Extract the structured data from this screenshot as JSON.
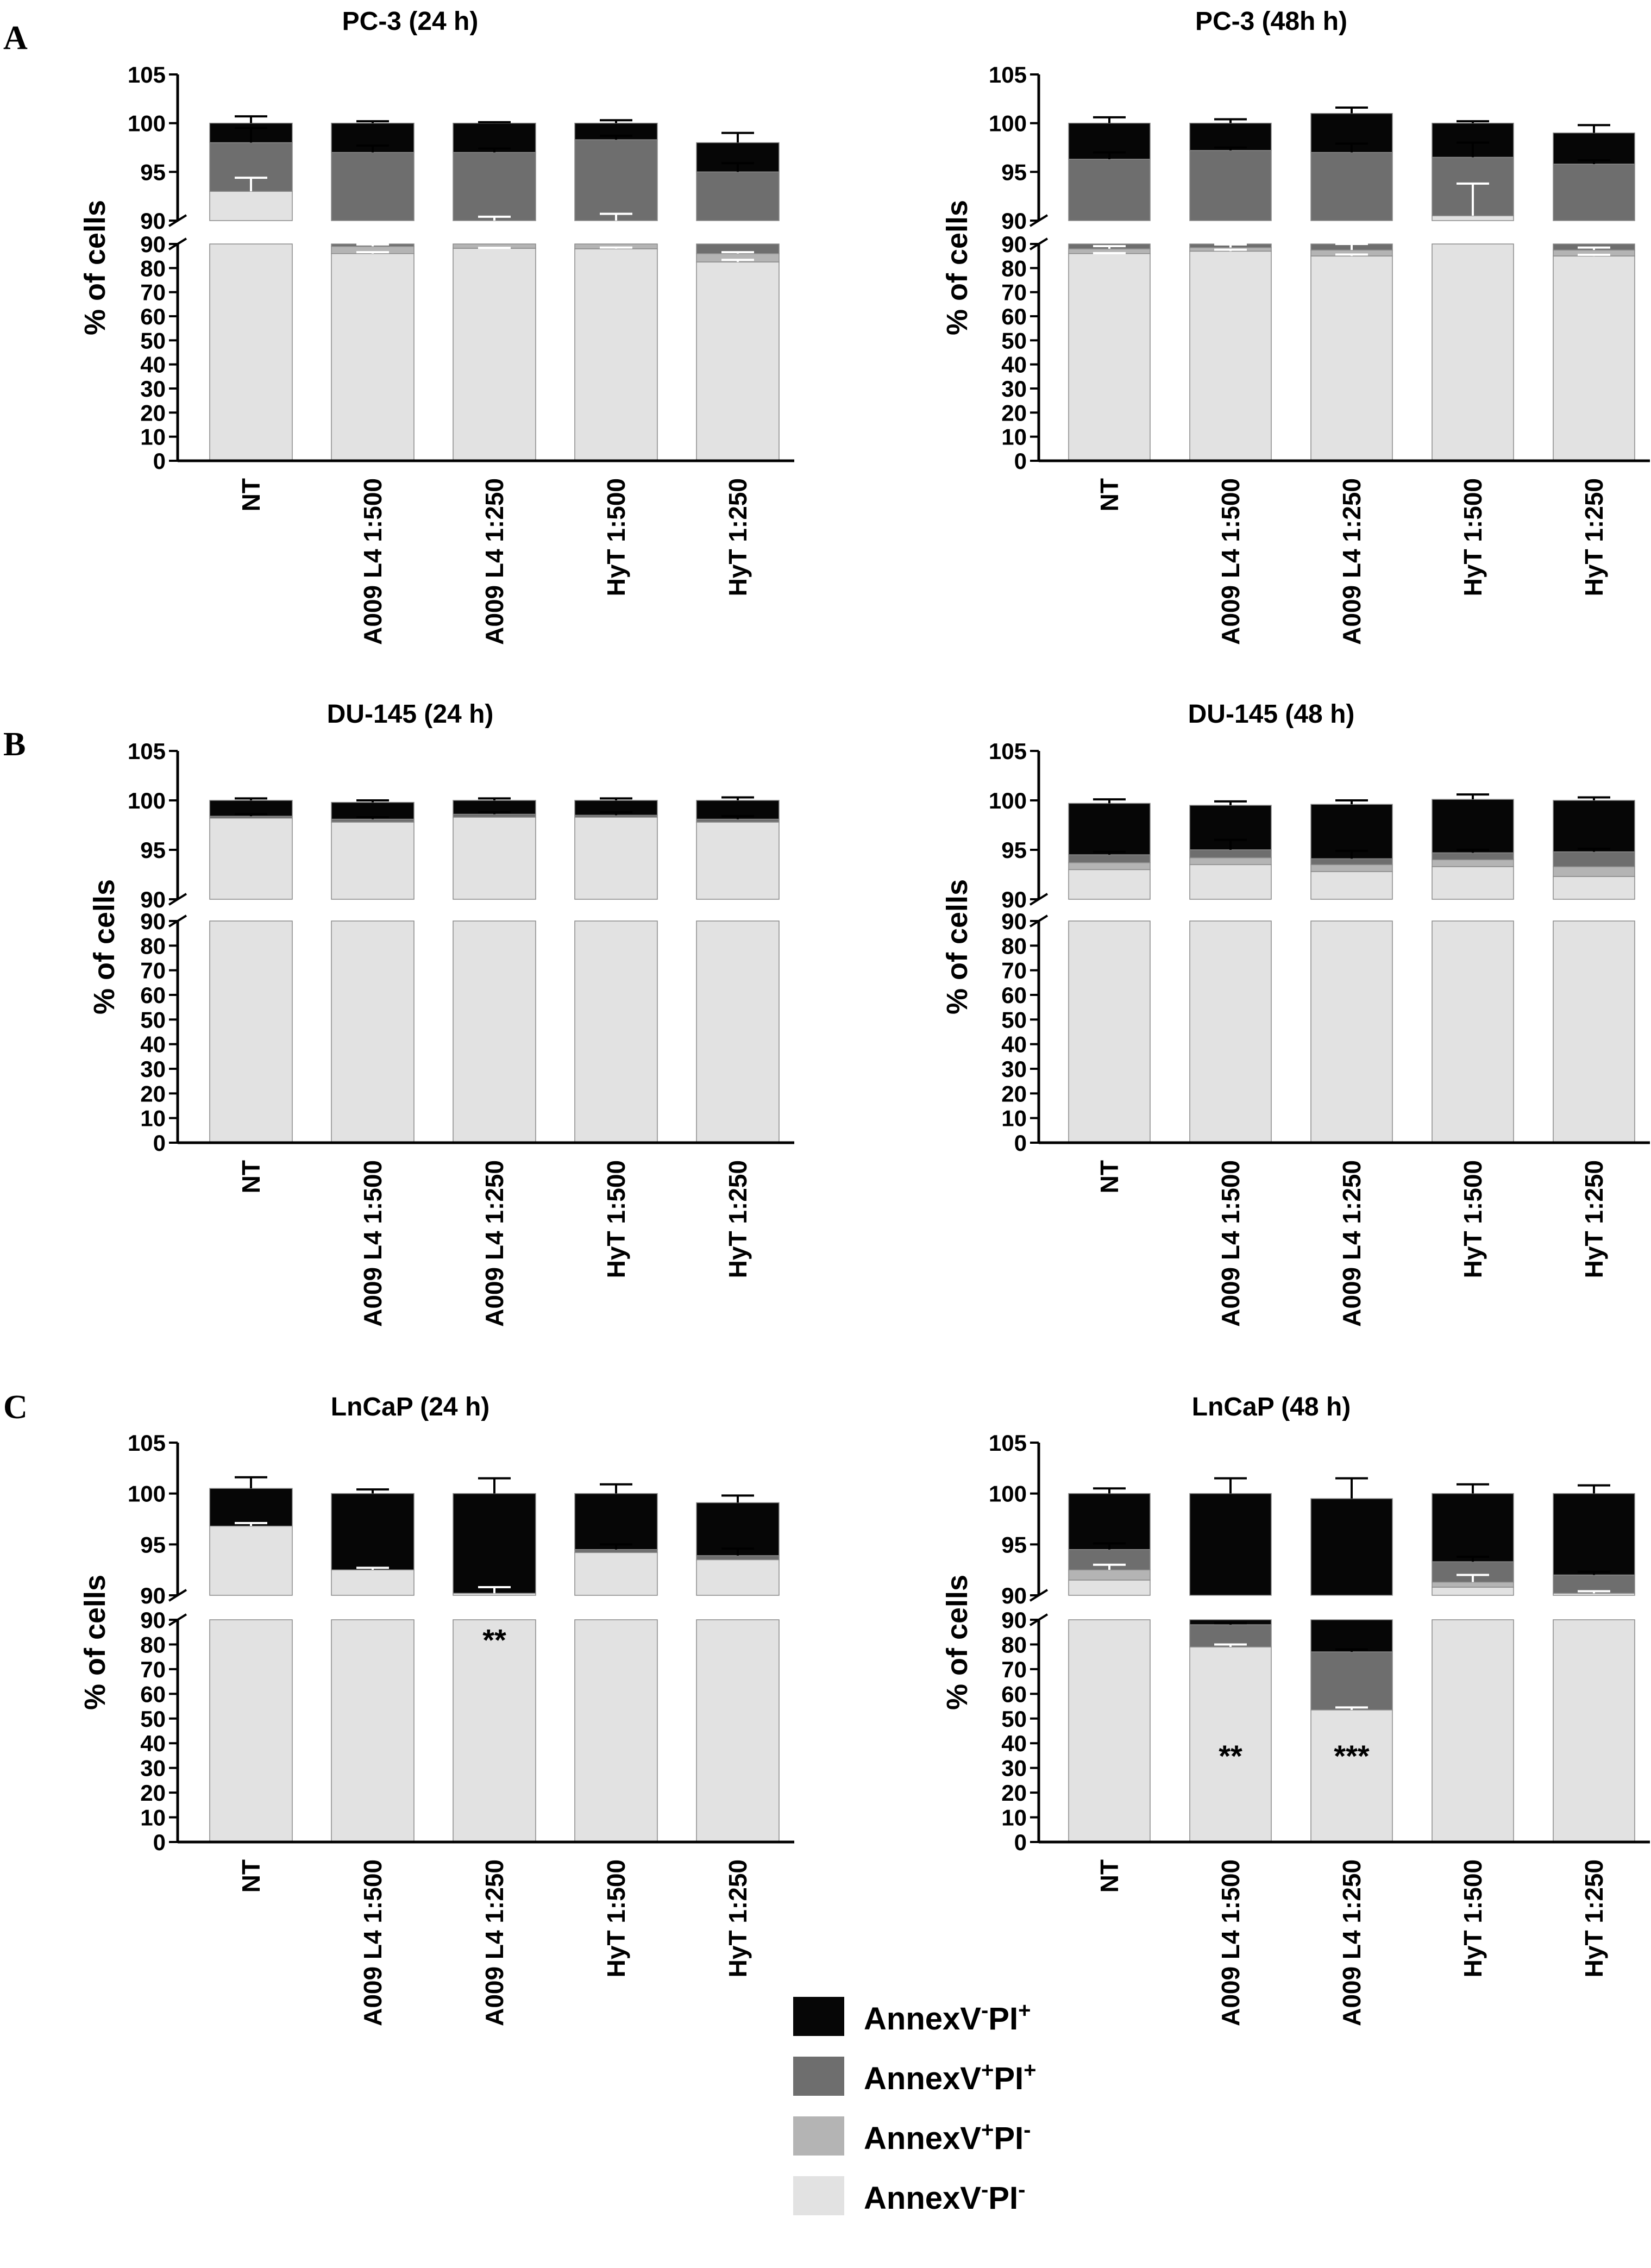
{
  "colors": {
    "an_pi_neg": "#e2e2e2",
    "an_pos_pi_neg": "#b4b4b4",
    "an_pos_pi_pos": "#6e6e6e",
    "an_neg_pi_pos": "#060606",
    "axis": "#000000"
  },
  "panel_labels": [
    "A",
    "B",
    "C"
  ],
  "legend": [
    {
      "key": "an_neg_pi_pos",
      "pre": "AnnexV",
      "sup1": "-",
      "mid": "PI",
      "sup2": "+"
    },
    {
      "key": "an_pos_pi_pos",
      "pre": "AnnexV",
      "sup1": "+",
      "mid": "PI",
      "sup2": "+"
    },
    {
      "key": "an_pos_pi_neg",
      "pre": "AnnexV",
      "sup1": "+",
      "mid": "PI",
      "sup2": "-"
    },
    {
      "key": "an_pi_neg",
      "pre": "AnnexV",
      "sup1": "-",
      "mid": "PI",
      "sup2": "-"
    }
  ],
  "chart_data": [
    {
      "type": "bar",
      "stacked": true,
      "broken_y_axis": true,
      "title": "PC-3 (24 h)",
      "ylabel": "% of cells",
      "categories": [
        "NT",
        "A009 L4 1:500",
        "A009 L4 1:250",
        "HyT 1:500",
        "HyT 1:250"
      ],
      "ylim_lower": [
        0,
        90
      ],
      "ylim_upper": [
        90,
        105
      ],
      "yticks_lower": [
        0,
        10,
        20,
        30,
        40,
        50,
        60,
        70,
        80,
        90
      ],
      "yticks_upper": [
        90,
        95,
        100,
        105
      ],
      "series": [
        {
          "name": "AnnexV-PI-",
          "key": "an_pi_neg",
          "values": [
            93.0,
            86.0,
            88.2,
            88.0,
            82.5
          ]
        },
        {
          "name": "AnnexV+PI-",
          "key": "an_pos_pi_neg",
          "values": [
            0.0,
            3.0,
            1.8,
            2.0,
            3.5
          ]
        },
        {
          "name": "AnnexV+PI+",
          "key": "an_pos_pi_pos",
          "values": [
            5.0,
            8.0,
            7.0,
            8.3,
            9.0
          ]
        },
        {
          "name": "AnnexV-PI+",
          "key": "an_neg_pi_pos",
          "values": [
            2.0,
            3.0,
            3.0,
            1.7,
            3.0
          ]
        }
      ],
      "errors": [
        [
          0.6,
          0.6,
          0.2,
          0.5,
          0.9
        ],
        [
          1.4,
          0.8,
          0.4,
          0.7,
          0.6
        ],
        [
          1.5,
          0.7,
          0.4,
          0.4,
          0.9
        ],
        [
          0.7,
          0.2,
          0.1,
          0.3,
          1.0
        ]
      ],
      "annotations": []
    },
    {
      "type": "bar",
      "stacked": true,
      "broken_y_axis": true,
      "title": "PC-3 (48h h)",
      "ylabel": "% of cells",
      "categories": [
        "NT",
        "A009 L4 1:500",
        "A009 L4 1:250",
        "HyT 1:500",
        "HyT 1:250"
      ],
      "ylim_lower": [
        0,
        90
      ],
      "ylim_upper": [
        90,
        105
      ],
      "yticks_lower": [
        0,
        10,
        20,
        30,
        40,
        50,
        60,
        70,
        80,
        90
      ],
      "yticks_upper": [
        90,
        95,
        100,
        105
      ],
      "series": [
        {
          "name": "AnnexV-PI-",
          "key": "an_pi_neg",
          "values": [
            86.0,
            87.0,
            85.0,
            90.5,
            85.0
          ]
        },
        {
          "name": "AnnexV+PI-",
          "key": "an_pos_pi_neg",
          "values": [
            2.0,
            1.5,
            2.5,
            0.0,
            2.5
          ]
        },
        {
          "name": "AnnexV+PI+",
          "key": "an_pos_pi_pos",
          "values": [
            8.3,
            8.7,
            9.5,
            6.0,
            8.3
          ]
        },
        {
          "name": "AnnexV-PI+",
          "key": "an_neg_pi_pos",
          "values": [
            3.7,
            2.8,
            4.0,
            3.5,
            3.2
          ]
        }
      ],
      "errors": [
        [
          0.2,
          0.6,
          0.6,
          0.7,
          0.5
        ],
        [
          1.1,
          1.3,
          2.5,
          3.3,
          1.0
        ],
        [
          0.7,
          0.3,
          0.9,
          1.5,
          0.4
        ],
        [
          0.6,
          0.4,
          0.6,
          0.2,
          0.8
        ]
      ],
      "annotations": []
    },
    {
      "type": "bar",
      "stacked": true,
      "broken_y_axis": true,
      "title": "DU-145 (24 h)",
      "ylabel": "% of cells",
      "categories": [
        "NT",
        "A009 L4 1:500",
        "A009 L4 1:250",
        "HyT 1:500",
        "HyT 1:250"
      ],
      "ylim_lower": [
        0,
        90
      ],
      "ylim_upper": [
        90,
        105
      ],
      "yticks_lower": [
        0,
        10,
        20,
        30,
        40,
        50,
        60,
        70,
        80,
        90
      ],
      "yticks_upper": [
        90,
        95,
        100,
        105
      ],
      "series": [
        {
          "name": "AnnexV-PI-",
          "key": "an_pi_neg",
          "values": [
            98.2,
            97.8,
            98.3,
            98.3,
            97.8
          ]
        },
        {
          "name": "AnnexV+PI-",
          "key": "an_pos_pi_neg",
          "values": [
            0.0,
            0.0,
            0.0,
            0.0,
            0.0
          ]
        },
        {
          "name": "AnnexV+PI+",
          "key": "an_pos_pi_pos",
          "values": [
            0.2,
            0.3,
            0.3,
            0.2,
            0.3
          ]
        },
        {
          "name": "AnnexV-PI+",
          "key": "an_neg_pi_pos",
          "values": [
            1.6,
            1.7,
            1.4,
            1.5,
            1.9
          ]
        }
      ],
      "errors": [
        [
          0.2,
          0.2,
          0.2,
          0.3,
          0.3
        ],
        [
          0.2,
          0.2,
          0.2,
          0.2,
          0.3
        ]
      ],
      "annotations": []
    },
    {
      "type": "bar",
      "stacked": true,
      "broken_y_axis": true,
      "title": "DU-145 (48 h)",
      "ylabel": "% of cells",
      "categories": [
        "NT",
        "A009 L4 1:500",
        "A009 L4 1:250",
        "HyT 1:500",
        "HyT 1:250"
      ],
      "ylim_lower": [
        0,
        90
      ],
      "ylim_upper": [
        90,
        105
      ],
      "yticks_lower": [
        0,
        10,
        20,
        30,
        40,
        50,
        60,
        70,
        80,
        90
      ],
      "yticks_upper": [
        90,
        95,
        100,
        105
      ],
      "series": [
        {
          "name": "AnnexV-PI-",
          "key": "an_pi_neg",
          "values": [
            93.0,
            93.5,
            92.8,
            93.3,
            92.3
          ]
        },
        {
          "name": "AnnexV+PI-",
          "key": "an_pos_pi_neg",
          "values": [
            0.7,
            0.7,
            0.7,
            0.7,
            1.0
          ]
        },
        {
          "name": "AnnexV+PI+",
          "key": "an_pos_pi_pos",
          "values": [
            0.8,
            0.8,
            0.6,
            0.7,
            1.5
          ]
        },
        {
          "name": "AnnexV-PI+",
          "key": "an_neg_pi_pos",
          "values": [
            5.2,
            4.5,
            5.5,
            5.4,
            5.2
          ]
        }
      ],
      "errors": [
        [
          0.3,
          1.0,
          0.8,
          0.3,
          0.3
        ],
        [
          0.4,
          0.4,
          0.4,
          0.5,
          0.3
        ]
      ],
      "annotations": []
    },
    {
      "type": "bar",
      "stacked": true,
      "broken_y_axis": true,
      "title": "LnCaP (24 h)",
      "ylabel": "% of cells",
      "categories": [
        "NT",
        "A009 L4 1:500",
        "A009 L4 1:250",
        "HyT 1:500",
        "HyT 1:250"
      ],
      "ylim_lower": [
        0,
        90
      ],
      "ylim_upper": [
        90,
        105
      ],
      "yticks_lower": [
        0,
        10,
        20,
        30,
        40,
        50,
        60,
        70,
        80,
        90
      ],
      "yticks_upper": [
        90,
        95,
        100,
        105
      ],
      "series": [
        {
          "name": "AnnexV-PI-",
          "key": "an_pi_neg",
          "values": [
            96.8,
            92.5,
            90.2,
            94.2,
            93.5
          ]
        },
        {
          "name": "AnnexV+PI-",
          "key": "an_pos_pi_neg",
          "values": [
            0.0,
            0.0,
            0.0,
            0.0,
            0.0
          ]
        },
        {
          "name": "AnnexV+PI+",
          "key": "an_pos_pi_pos",
          "values": [
            0.0,
            0.0,
            0.0,
            0.3,
            0.4
          ]
        },
        {
          "name": "AnnexV-PI+",
          "key": "an_neg_pi_pos",
          "values": [
            3.7,
            7.5,
            9.8,
            5.5,
            5.2
          ]
        }
      ],
      "errors": [
        [
          0.3,
          0.2,
          0.6,
          0.5,
          0.7
        ],
        [
          1.1,
          0.4,
          1.5,
          0.9,
          0.7
        ]
      ],
      "annotations": [
        {
          "category": "A009 L4 1:250",
          "text": "**",
          "y": 82
        }
      ]
    },
    {
      "type": "bar",
      "stacked": true,
      "broken_y_axis": true,
      "title": "LnCaP (48 h)",
      "ylabel": "% of cells",
      "categories": [
        "NT",
        "A009 L4 1:500",
        "A009 L4 1:250",
        "HyT 1:500",
        "HyT 1:250"
      ],
      "ylim_lower": [
        0,
        90
      ],
      "ylim_upper": [
        90,
        105
      ],
      "yticks_lower": [
        0,
        10,
        20,
        30,
        40,
        50,
        60,
        70,
        80,
        90
      ],
      "yticks_upper": [
        90,
        95,
        100,
        105
      ],
      "series": [
        {
          "name": "AnnexV-PI-",
          "key": "an_pi_neg",
          "values": [
            91.5,
            79.0,
            53.5,
            90.8,
            90.2
          ]
        },
        {
          "name": "AnnexV+PI-",
          "key": "an_pos_pi_neg",
          "values": [
            1.0,
            0.0,
            0.0,
            0.5,
            0.0
          ]
        },
        {
          "name": "AnnexV+PI+",
          "key": "an_pos_pi_pos",
          "values": [
            2.0,
            9.0,
            23.5,
            2.0,
            1.8
          ]
        },
        {
          "name": "AnnexV-PI+",
          "key": "an_neg_pi_pos",
          "values": [
            5.5,
            12.0,
            22.5,
            6.7,
            8.0
          ]
        }
      ],
      "errors": [
        [
          0.5,
          1.0,
          1.0,
          0.7,
          0.2
        ],
        [
          0.6,
          0.6,
          1.0,
          0.5,
          0.3
        ],
        [
          0.5,
          1.5,
          2.0,
          0.9,
          0.8
        ]
      ],
      "annotations": [
        {
          "category": "A009 L4 1:500",
          "text": "**",
          "y": 35
        },
        {
          "category": "A009 L4 1:250",
          "text": "***",
          "y": 35
        }
      ]
    }
  ]
}
